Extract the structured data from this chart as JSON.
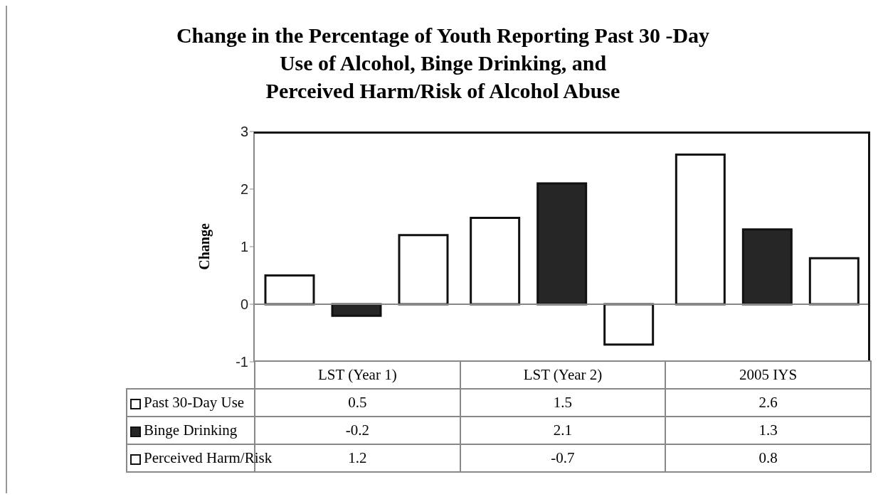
{
  "chart_data": {
    "type": "bar",
    "title": "Change in the Percentage of Youth Reporting Past 30  -Day\nUse of Alcohol, Binge Drinking, and\nPerceived Harm/Risk of Alcohol Abuse",
    "ylabel": "Change",
    "categories": [
      "LST (Year 1)",
      "LST (Year 2)",
      "2005 IYS"
    ],
    "series": [
      {
        "name": "Past 30-Day Use",
        "color": "#ffffff",
        "values": [
          0.5,
          1.5,
          2.6
        ]
      },
      {
        "name": "Binge Drinking",
        "color": "#262626",
        "values": [
          -0.2,
          2.1,
          1.3
        ]
      },
      {
        "name": "Perceived Harm/Risk",
        "color": "#ffffff",
        "values": [
          1.2,
          -0.7,
          0.8
        ]
      }
    ],
    "ylim": [
      -1,
      3
    ],
    "yticks": [
      -1,
      0,
      1,
      2,
      3
    ],
    "ref_lines": [
      {
        "axis": "y",
        "value": 0
      }
    ],
    "legend": "bottom",
    "data_labels": true
  }
}
